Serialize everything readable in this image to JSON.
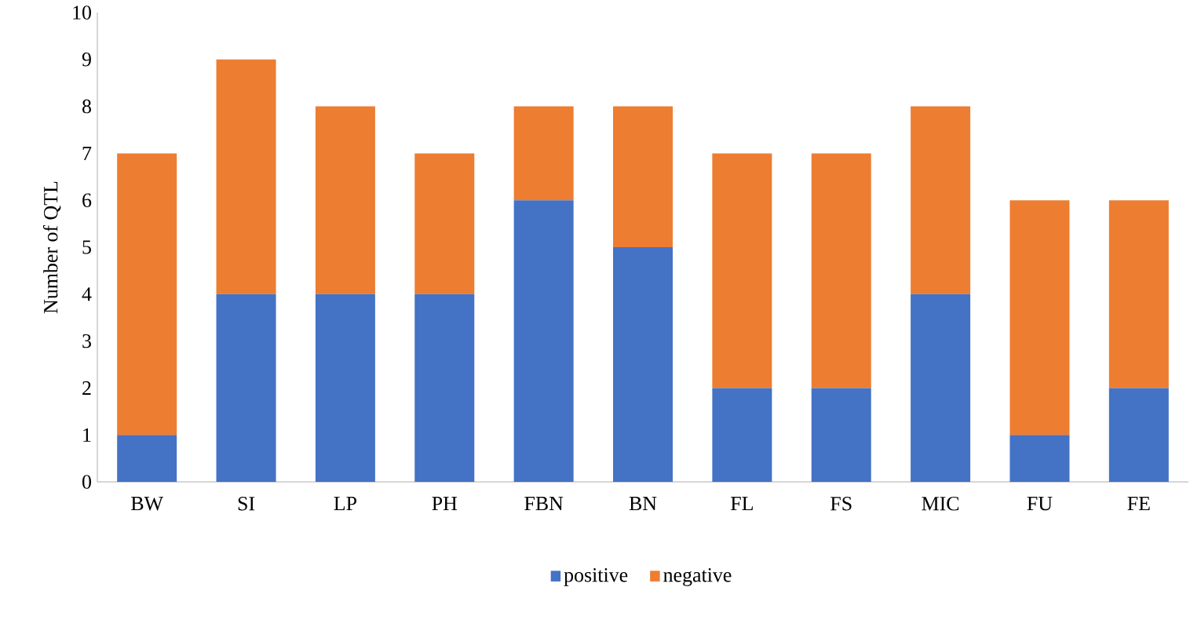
{
  "chart_data": {
    "type": "bar",
    "ylabel": "Number of QTL",
    "stacked": true,
    "categories": [
      "BW",
      "SI",
      "LP",
      "PH",
      "FBN",
      "BN",
      "FL",
      "FS",
      "MIC",
      "FU",
      "FE"
    ],
    "series": [
      {
        "name": "positive",
        "color": "#4472c4",
        "values": [
          1,
          4,
          4,
          4,
          6,
          5,
          2,
          2,
          4,
          1,
          2
        ]
      },
      {
        "name": "negative",
        "color": "#ed7d31",
        "values": [
          6,
          5,
          4,
          3,
          2,
          3,
          5,
          5,
          4,
          5,
          4
        ]
      }
    ],
    "ylim": [
      0,
      10
    ],
    "yticks": [
      0,
      1,
      2,
      3,
      4,
      5,
      6,
      7,
      8,
      9,
      10
    ],
    "grid": false,
    "legend": "bottom"
  }
}
